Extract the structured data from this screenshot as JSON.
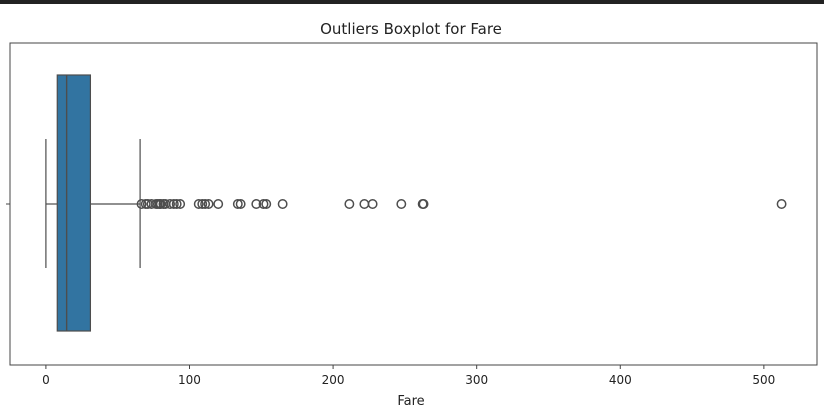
{
  "chart_data": {
    "type": "boxplot",
    "title": "Outliers Boxplot for Fare",
    "xlabel": "Fare",
    "ylabel": "",
    "xlim": [
      -25,
      537
    ],
    "xticks": [
      0,
      100,
      200,
      300,
      400,
      500
    ],
    "xtick_labels": [
      "0",
      "100",
      "200",
      "300",
      "400",
      "500"
    ],
    "grid": false,
    "box": {
      "whisker_low": 0,
      "q1": 7.91,
      "median": 14.45,
      "q3": 31.0,
      "whisker_high": 65.6
    },
    "outliers": [
      66.6,
      69.55,
      71.0,
      73.5,
      76.73,
      77.96,
      79.2,
      80.0,
      81.86,
      83.16,
      86.5,
      89.1,
      91.08,
      93.5,
      106.43,
      108.9,
      110.88,
      113.28,
      120.0,
      133.65,
      135.63,
      146.52,
      151.55,
      153.46,
      164.87,
      211.34,
      221.78,
      227.53,
      247.52,
      262.38,
      263.0,
      512.33
    ],
    "colors": {
      "box_fill": "#3274a1",
      "lines": "#4d4d4d",
      "frame": "#444444"
    }
  }
}
